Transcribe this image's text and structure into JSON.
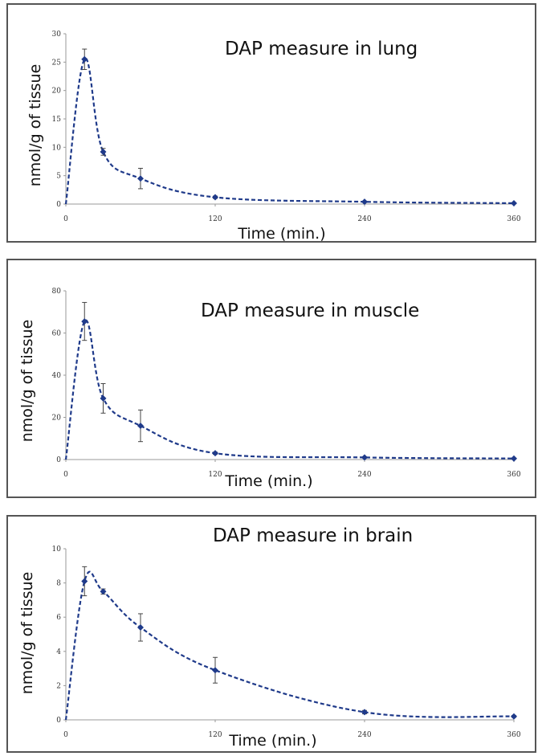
{
  "chart_data": [
    {
      "type": "line",
      "title": "DAP measure in lung",
      "xlabel": "Time (min.)",
      "ylabel": "nmol/g of tissue",
      "xlim": [
        0,
        360
      ],
      "ylim": [
        0,
        30
      ],
      "xticks": [
        "0",
        "120",
        "240",
        "360"
      ],
      "yticks": [
        "0",
        "5",
        "10",
        "15",
        "20",
        "25",
        "30"
      ],
      "grid": false,
      "series": [
        {
          "x": [
            0,
            15,
            30,
            60,
            120,
            240,
            360
          ],
          "y": [
            0,
            25.5,
            9.2,
            4.5,
            1.2,
            0.4,
            0.15
          ],
          "error": [
            0,
            1.8,
            0.6,
            1.8,
            0.2,
            0.1,
            0.05
          ],
          "color": "#1f3a8a"
        }
      ]
    },
    {
      "type": "line",
      "title": "DAP measure in muscle",
      "xlabel": "Time (min.)",
      "ylabel": "nmol/g of tissue",
      "xlim": [
        0,
        360
      ],
      "ylim": [
        0,
        80
      ],
      "xticks": [
        "0",
        "120",
        "240",
        "360"
      ],
      "yticks": [
        "0",
        "20",
        "40",
        "60",
        "80"
      ],
      "grid": false,
      "series": [
        {
          "x": [
            0,
            15,
            30,
            60,
            120,
            240,
            360
          ],
          "y": [
            0,
            65.5,
            29,
            16,
            3,
            1,
            0.5
          ],
          "error": [
            0,
            9,
            7,
            7.5,
            0.5,
            0.3,
            0.2
          ],
          "color": "#1f3a8a"
        }
      ]
    },
    {
      "type": "line",
      "title": "DAP measure in brain",
      "xlabel": "Time (min.)",
      "ylabel": "nmol/g of tissue",
      "xlim": [
        0,
        360
      ],
      "ylim": [
        0,
        10
      ],
      "xticks": [
        "0",
        "120",
        "240",
        "360"
      ],
      "yticks": [
        "0",
        "2",
        "4",
        "6",
        "8",
        "10"
      ],
      "grid": false,
      "series": [
        {
          "x": [
            0,
            15,
            30,
            60,
            120,
            240,
            360
          ],
          "y": [
            0,
            8.1,
            7.5,
            5.4,
            2.9,
            0.45,
            0.2
          ],
          "error": [
            0,
            0.85,
            0.15,
            0.8,
            0.75,
            0.1,
            0.05
          ],
          "color": "#1f3a8a"
        }
      ]
    }
  ]
}
